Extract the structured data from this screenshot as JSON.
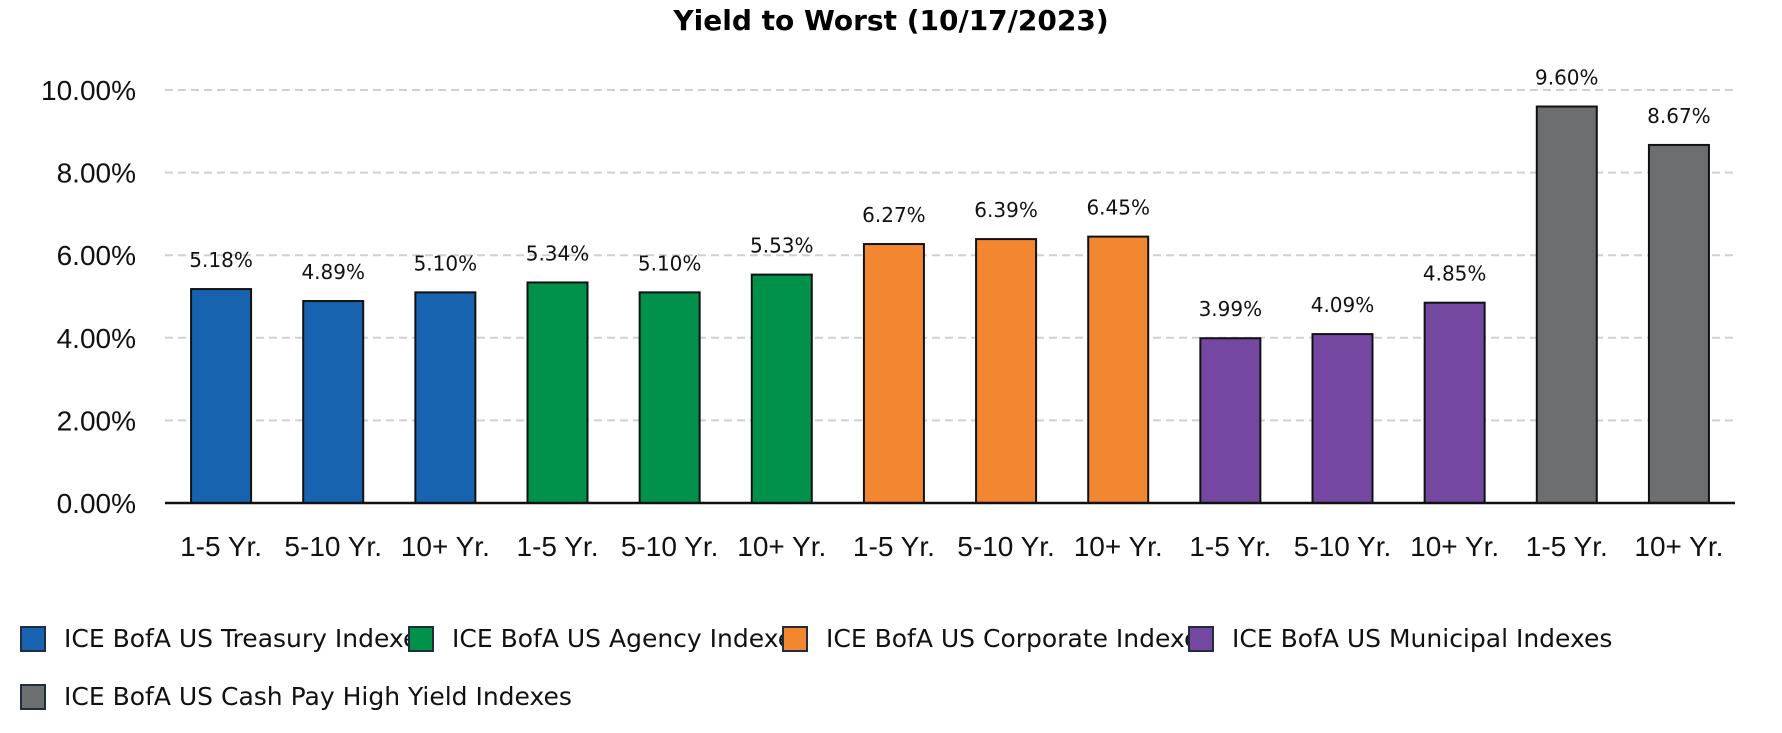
{
  "chart_data": {
    "type": "bar",
    "title": "Yield to Worst (10/17/2023)",
    "xlabel": "",
    "ylabel": "",
    "ylim": [
      0,
      10
    ],
    "yticks": [
      "0.00%",
      "2.00%",
      "4.00%",
      "6.00%",
      "8.00%",
      "10.00%"
    ],
    "grid": true,
    "legend_position": "bottom",
    "categories": [
      "1-5 Yr.",
      "5-10 Yr.",
      "10+ Yr.",
      "1-5 Yr.",
      "5-10 Yr.",
      "10+ Yr.",
      "1-5 Yr.",
      "5-10 Yr.",
      "10+ Yr.",
      "1-5 Yr.",
      "5-10 Yr.",
      "10+ Yr.",
      "1-5 Yr.",
      "10+ Yr."
    ],
    "values": [
      5.18,
      4.89,
      5.1,
      5.34,
      5.1,
      5.53,
      6.27,
      6.39,
      6.45,
      3.99,
      4.09,
      4.85,
      9.6,
      8.67
    ],
    "data_labels": [
      "5.18%",
      "4.89%",
      "5.10%",
      "5.34%",
      "5.10%",
      "5.53%",
      "6.27%",
      "6.39%",
      "6.45%",
      "3.99%",
      "4.09%",
      "4.85%",
      "9.60%",
      "8.67%"
    ],
    "bar_groups": [
      0,
      0,
      0,
      1,
      1,
      1,
      2,
      2,
      2,
      3,
      3,
      3,
      4,
      4
    ],
    "series": [
      {
        "name": "ICE BofA US Treasury Indexes",
        "color": "#1763b0"
      },
      {
        "name": "ICE BofA US Agency Indexes",
        "color": "#00924a"
      },
      {
        "name": "ICE BofA US Corporate Indexes",
        "color": "#f38631"
      },
      {
        "name": "ICE BofA US Municipal Indexes",
        "color": "#7447a0"
      },
      {
        "name": "ICE BofA US Cash Pay High Yield Indexes",
        "color": "#6d6e70"
      }
    ]
  }
}
